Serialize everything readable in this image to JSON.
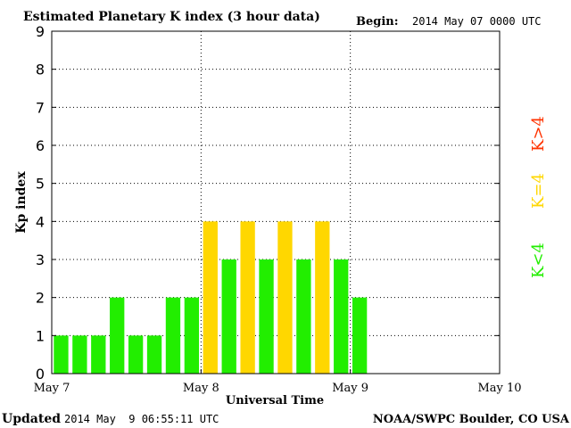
{
  "header": {
    "title": "Estimated Planetary K index (3 hour data)",
    "begin_label": "Begin:",
    "begin_value": "2014 May 07 0000 UTC"
  },
  "footer": {
    "updated_label": "Updated",
    "updated_value": "2014 May  9 06:55:11 UTC",
    "source": "NOAA/SWPC Boulder, CO USA"
  },
  "legend": {
    "k_less": "K<4",
    "k_equal": "K=4",
    "k_greater": "K>4"
  },
  "colors": {
    "below4": "#22ee00",
    "equal4": "#ffd700",
    "above4": "#ff3300",
    "grid": "#000000",
    "text": "#000000"
  },
  "chart_data": {
    "type": "bar",
    "title": "Estimated Planetary K index (3 hour data)",
    "xlabel": "Universal Time",
    "ylabel": "Kp index",
    "ylim": [
      0,
      9
    ],
    "yticks": [
      0,
      1,
      2,
      3,
      4,
      5,
      6,
      7,
      8,
      9
    ],
    "xlim_days": [
      0,
      3
    ],
    "xtick_labels": [
      "May 7",
      "May 8",
      "May 9",
      "May 10"
    ],
    "bar_interval_hours": 3,
    "grid": true,
    "values": [
      1,
      1,
      1,
      2,
      1,
      1,
      2,
      2,
      4,
      3,
      4,
      3,
      4,
      3,
      4,
      3,
      2
    ]
  }
}
